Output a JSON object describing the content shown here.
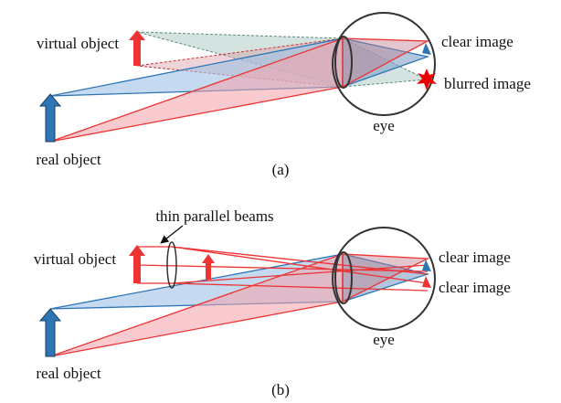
{
  "panels": [
    {
      "caption": "(a)",
      "labels": {
        "virtual_object": "virtual object",
        "clear_image": "clear image",
        "blurred_image": "blurred image",
        "eye": "eye",
        "real_object": "real object"
      }
    },
    {
      "caption": "(b)",
      "labels": {
        "beams": "thin parallel beams",
        "virtual_object": "virtual object",
        "clear_image_1": "clear image",
        "clear_image_2": "clear image",
        "eye": "eye",
        "real_object": "real object"
      }
    }
  ]
}
